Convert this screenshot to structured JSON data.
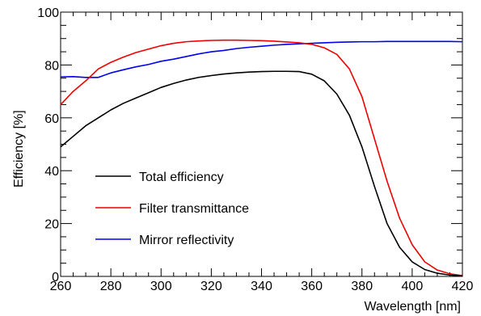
{
  "chart_data": {
    "type": "line",
    "xlabel": "Wavelength [nm]",
    "ylabel": "Efficiency [%]",
    "xlim": [
      260,
      420
    ],
    "ylim": [
      0,
      100
    ],
    "x_ticks": [
      260,
      280,
      300,
      320,
      340,
      360,
      380,
      400,
      420
    ],
    "y_ticks": [
      0,
      20,
      40,
      60,
      80,
      100
    ],
    "x_minor_step": 5,
    "y_minor_step": 5,
    "grid": false,
    "legend_position": "lower-left",
    "series": [
      {
        "name": "Total efficiency",
        "color": "#000000",
        "x": [
          260,
          265,
          270,
          275,
          280,
          285,
          290,
          295,
          300,
          305,
          310,
          315,
          320,
          325,
          330,
          335,
          340,
          345,
          350,
          355,
          360,
          365,
          370,
          375,
          380,
          385,
          390,
          395,
          400,
          405,
          410,
          415,
          420
        ],
        "y": [
          49,
          53,
          57,
          60,
          63,
          65.5,
          67.5,
          69.5,
          71.5,
          73,
          74.3,
          75.3,
          76,
          76.6,
          77,
          77.3,
          77.5,
          77.6,
          77.6,
          77.5,
          76.5,
          74,
          69,
          61,
          49,
          34,
          20,
          11,
          5.5,
          2.6,
          1.2,
          0.5,
          0.2
        ]
      },
      {
        "name": "Filter transmittance",
        "color": "#ee0000",
        "x": [
          260,
          265,
          270,
          275,
          280,
          285,
          290,
          295,
          300,
          305,
          310,
          315,
          320,
          325,
          330,
          335,
          340,
          345,
          350,
          355,
          360,
          365,
          370,
          375,
          380,
          385,
          390,
          395,
          400,
          405,
          410,
          415,
          420
        ],
        "y": [
          65,
          70,
          74,
          78.5,
          81,
          83,
          84.7,
          86,
          87.3,
          88.2,
          88.8,
          89.1,
          89.3,
          89.4,
          89.4,
          89.3,
          89.2,
          89,
          88.7,
          88.4,
          87.8,
          86.5,
          84,
          78.5,
          68,
          52,
          36,
          22,
          12,
          5.5,
          2.4,
          1,
          0.3
        ]
      },
      {
        "name": "Mirror reflectivity",
        "color": "#0000ee",
        "x": [
          260,
          265,
          270,
          275,
          280,
          285,
          290,
          295,
          300,
          305,
          310,
          315,
          320,
          325,
          330,
          335,
          340,
          345,
          350,
          355,
          360,
          365,
          370,
          375,
          380,
          385,
          390,
          395,
          400,
          405,
          410,
          415,
          420
        ],
        "y": [
          75.5,
          75.6,
          75.3,
          75.3,
          77,
          78.2,
          79.3,
          80.2,
          81.4,
          82.2,
          83.2,
          84.2,
          85,
          85.5,
          86.2,
          86.7,
          87.1,
          87.5,
          87.8,
          88,
          88.2,
          88.4,
          88.6,
          88.7,
          88.8,
          88.8,
          88.9,
          88.9,
          88.9,
          88.9,
          88.9,
          88.9,
          88.8
        ]
      }
    ]
  }
}
